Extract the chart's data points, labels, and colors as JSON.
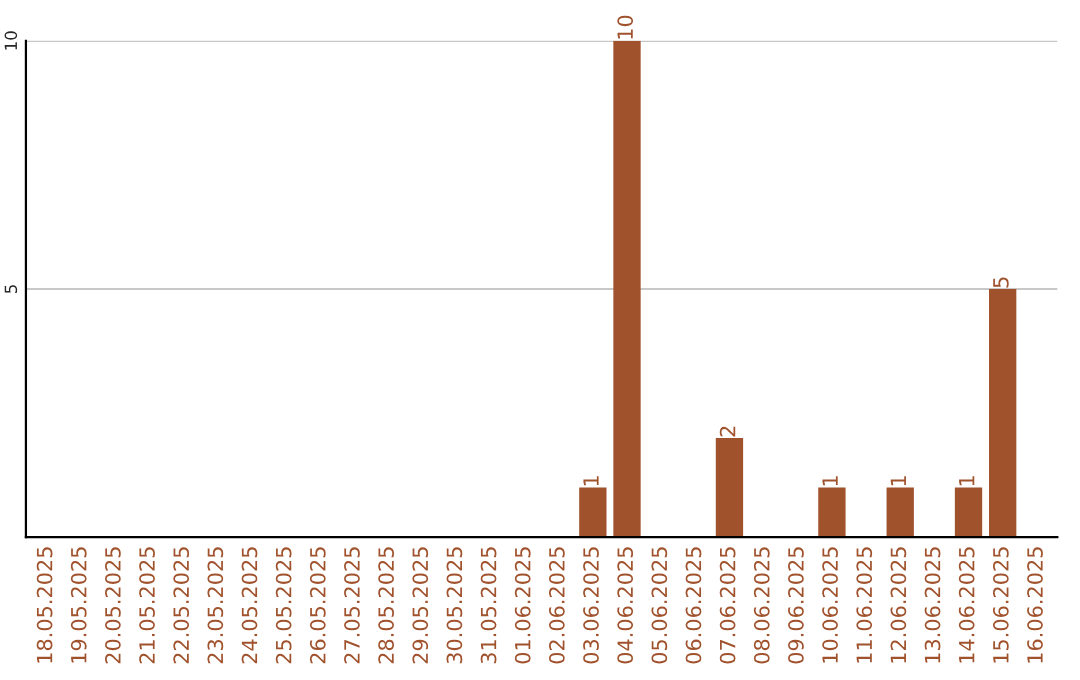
{
  "chart_data": {
    "type": "bar",
    "categories": [
      "18.05.2025",
      "19.05.2025",
      "20.05.2025",
      "21.05.2025",
      "22.05.2025",
      "23.05.2025",
      "24.05.2025",
      "25.05.2025",
      "26.05.2025",
      "27.05.2025",
      "28.05.2025",
      "29.05.2025",
      "30.05.2025",
      "31.05.2025",
      "01.06.2025",
      "02.06.2025",
      "03.06.2025",
      "04.06.2025",
      "05.06.2025",
      "06.06.2025",
      "07.06.2025",
      "08.06.2025",
      "09.06.2025",
      "10.06.2025",
      "11.06.2025",
      "12.06.2025",
      "13.06.2025",
      "14.06.2025",
      "15.06.2025",
      "16.06.2025"
    ],
    "values": [
      0,
      0,
      0,
      0,
      0,
      0,
      0,
      0,
      0,
      0,
      0,
      0,
      0,
      0,
      0,
      0,
      1,
      10,
      0,
      0,
      2,
      0,
      0,
      1,
      0,
      1,
      0,
      1,
      5,
      0
    ],
    "value_labels": [
      null,
      null,
      null,
      null,
      null,
      null,
      null,
      null,
      null,
      null,
      null,
      null,
      null,
      null,
      null,
      null,
      "1",
      "10",
      null,
      null,
      "2",
      null,
      null,
      "1",
      null,
      "1",
      null,
      "1",
      "5",
      null
    ],
    "color": "#a0522d",
    "ylim": [
      0,
      10
    ],
    "yticks": [
      5,
      10
    ],
    "grid": "y"
  }
}
